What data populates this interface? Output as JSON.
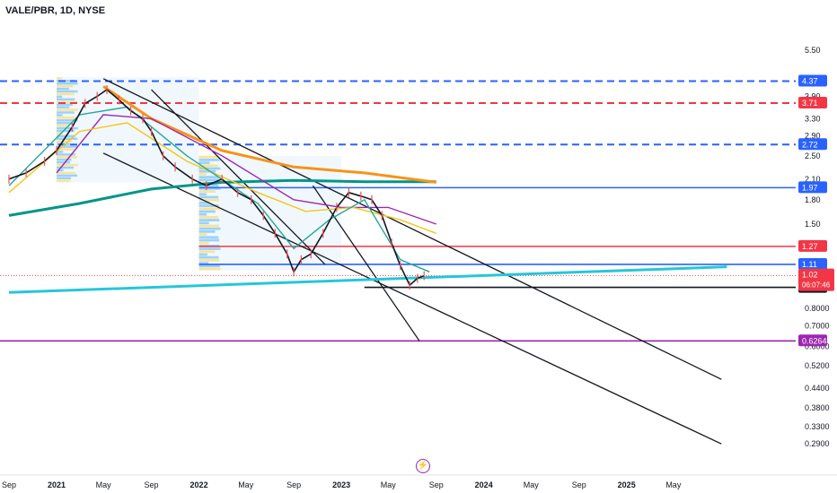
{
  "header": {
    "symbol": "VALE/PBR, 1D, NYSE"
  },
  "logo": {
    "icon": "lightning-logo-icon"
  },
  "chart_data": {
    "type": "line",
    "title": "VALE/PBR, 1D, NYSE",
    "y_scale": "log",
    "ylim": [
      0.27,
      5.6
    ],
    "xlim": [
      "2020-09-01",
      "2025-09-15"
    ],
    "grid": false,
    "y_ticks": [
      "5.50",
      "3.90",
      "3.30",
      "2.90",
      "2.50",
      "2.10",
      "1.80",
      "1.50",
      "0.8000",
      "0.7000",
      "0.6000",
      "0.5200",
      "0.4400",
      "0.3800",
      "0.3300",
      "0.2900"
    ],
    "y_tick_values": [
      5.5,
      3.9,
      3.3,
      2.9,
      2.5,
      2.1,
      1.8,
      1.5,
      0.8,
      0.7,
      0.6,
      0.52,
      0.44,
      0.38,
      0.33,
      0.29
    ],
    "x_ticks": [
      {
        "label": "Sep",
        "date": "2020-09-01"
      },
      {
        "label": "2021",
        "date": "2021-01-01"
      },
      {
        "label": "May",
        "date": "2021-05-01"
      },
      {
        "label": "Sep",
        "date": "2021-09-01"
      },
      {
        "label": "2022",
        "date": "2022-01-01"
      },
      {
        "label": "May",
        "date": "2022-05-01"
      },
      {
        "label": "Sep",
        "date": "2022-09-01"
      },
      {
        "label": "2023",
        "date": "2023-01-01"
      },
      {
        "label": "May",
        "date": "2023-05-01"
      },
      {
        "label": "Sep",
        "date": "2023-09-01"
      },
      {
        "label": "2024",
        "date": "2024-01-01"
      },
      {
        "label": "May",
        "date": "2024-05-01"
      },
      {
        "label": "Sep",
        "date": "2024-09-01"
      },
      {
        "label": "2025",
        "date": "2025-01-01"
      },
      {
        "label": "May",
        "date": "2025-05-01"
      }
    ],
    "price": [
      [
        "2020-09-01",
        2.1
      ],
      [
        "2020-10-15",
        2.2
      ],
      [
        "2020-12-01",
        2.4
      ],
      [
        "2021-01-01",
        2.6
      ],
      [
        "2021-02-10",
        3.1
      ],
      [
        "2021-03-15",
        3.7
      ],
      [
        "2021-04-15",
        3.9
      ],
      [
        "2021-05-10",
        4.1
      ],
      [
        "2021-06-10",
        3.8
      ],
      [
        "2021-07-10",
        3.5
      ],
      [
        "2021-08-10",
        3.3
      ],
      [
        "2021-09-01",
        3.0
      ],
      [
        "2021-10-01",
        2.5
      ],
      [
        "2021-11-01",
        2.3
      ],
      [
        "2021-12-15",
        2.1
      ],
      [
        "2022-01-20",
        2.0
      ],
      [
        "2022-03-01",
        2.1
      ],
      [
        "2022-04-10",
        1.9
      ],
      [
        "2022-05-15",
        1.8
      ],
      [
        "2022-06-15",
        1.6
      ],
      [
        "2022-07-15",
        1.4
      ],
      [
        "2022-08-15",
        1.2
      ],
      [
        "2022-09-01",
        1.05
      ],
      [
        "2022-09-20",
        1.15
      ],
      [
        "2022-10-15",
        1.2
      ],
      [
        "2022-11-15",
        1.4
      ],
      [
        "2022-12-20",
        1.7
      ],
      [
        "2023-01-20",
        1.9
      ],
      [
        "2023-02-20",
        1.85
      ],
      [
        "2023-03-20",
        1.8
      ],
      [
        "2023-04-15",
        1.6
      ],
      [
        "2023-05-10",
        1.3
      ],
      [
        "2023-06-01",
        1.1
      ],
      [
        "2023-06-25",
        0.95
      ],
      [
        "2023-07-15",
        1.0
      ],
      [
        "2023-08-01",
        1.02
      ]
    ],
    "moving_averages": [
      {
        "color": "#009688",
        "points": [
          [
            "2020-09-01",
            1.6
          ],
          [
            "2021-03-01",
            1.75
          ],
          [
            "2021-09-01",
            1.95
          ],
          [
            "2022-03-01",
            2.05
          ],
          [
            "2022-09-01",
            2.08
          ],
          [
            "2023-03-01",
            2.06
          ],
          [
            "2023-09-01",
            2.06
          ]
        ]
      },
      {
        "color": "#f7931a",
        "points": [
          [
            "2021-05-01",
            4.2
          ],
          [
            "2021-09-01",
            3.3
          ],
          [
            "2022-03-01",
            2.6
          ],
          [
            "2022-09-01",
            2.3
          ],
          [
            "2023-03-01",
            2.2
          ],
          [
            "2023-09-01",
            2.05
          ]
        ]
      },
      {
        "color": "#9c27b0",
        "points": [
          [
            "2021-01-01",
            2.2
          ],
          [
            "2021-05-01",
            3.4
          ],
          [
            "2021-09-01",
            3.3
          ],
          [
            "2022-03-01",
            2.5
          ],
          [
            "2022-09-01",
            1.8
          ],
          [
            "2023-01-01",
            1.7
          ],
          [
            "2023-05-01",
            1.7
          ],
          [
            "2023-09-01",
            1.5
          ]
        ]
      },
      {
        "color": "#f5c518",
        "points": [
          [
            "2020-09-01",
            1.9
          ],
          [
            "2021-03-01",
            3.0
          ],
          [
            "2021-07-01",
            3.2
          ],
          [
            "2021-12-01",
            2.4
          ],
          [
            "2022-06-01",
            1.9
          ],
          [
            "2022-10-01",
            1.65
          ],
          [
            "2023-02-01",
            1.7
          ],
          [
            "2023-06-01",
            1.55
          ],
          [
            "2023-09-01",
            1.4
          ]
        ]
      },
      {
        "color": "#26a69a",
        "points": [
          [
            "2020-09-01",
            2.0
          ],
          [
            "2021-03-01",
            3.4
          ],
          [
            "2021-07-01",
            3.6
          ],
          [
            "2021-12-01",
            2.5
          ],
          [
            "2022-06-01",
            1.75
          ],
          [
            "2022-09-01",
            1.25
          ],
          [
            "2022-12-01",
            1.55
          ],
          [
            "2023-03-01",
            1.8
          ],
          [
            "2023-06-01",
            1.15
          ],
          [
            "2023-08-15",
            1.05
          ]
        ]
      }
    ],
    "horizontal_levels": [
      {
        "label": "4.37",
        "value": 4.37,
        "color": "#2962ff",
        "style": "dashed"
      },
      {
        "label": "3.71",
        "value": 3.71,
        "color": "#f23645",
        "style": "dashed"
      },
      {
        "label": "2.72",
        "value": 2.72,
        "color": "#2962ff",
        "style": "dashed"
      },
      {
        "label": "1.97",
        "value": 1.97,
        "color": "#2962ff",
        "style": "solid",
        "from": "2022-01-01"
      },
      {
        "label": "1.27",
        "value": 1.27,
        "color": "#f23645",
        "style": "solid",
        "from": "2022-01-01"
      },
      {
        "label": "1.11",
        "value": 1.11,
        "color": "#2962ff",
        "style": "solid",
        "from": "2022-01-01"
      },
      {
        "label": "0.9349",
        "value": 0.9349,
        "color": "#131722",
        "style": "solid",
        "from": "2023-03-01"
      },
      {
        "label": "0.6264",
        "value": 0.6264,
        "color": "#9c27b0",
        "style": "solid"
      }
    ],
    "current_price": {
      "label": "1.02",
      "countdown": "06:07:46",
      "value": 1.02
    },
    "trendlines": [
      {
        "color": "#131722",
        "from": [
          "2021-05-01",
          4.45
        ],
        "to": [
          "2025-09-01",
          0.47
        ]
      },
      {
        "color": "#131722",
        "from": [
          "2021-05-01",
          2.55
        ],
        "to": [
          "2025-09-01",
          0.29
        ]
      },
      {
        "color": "#131722",
        "from": [
          "2021-09-01",
          4.1
        ],
        "to": [
          "2022-11-20",
          1.11
        ]
      },
      {
        "color": "#131722",
        "from": [
          "2022-10-20",
          2.0
        ],
        "to": [
          "2023-07-20",
          0.6264
        ]
      },
      {
        "color": "#26c6da",
        "from": [
          "2020-09-01",
          0.9
        ],
        "to": [
          "2025-09-15",
          1.09
        ]
      }
    ],
    "volume_profile_boxes": [
      {
        "from": "2021-01-01",
        "to": "2022-01-01",
        "top": 4.5,
        "bottom": 2.05
      },
      {
        "from": "2022-01-01",
        "to": "2023-01-01",
        "top": 2.5,
        "bottom": 1.06
      }
    ]
  }
}
